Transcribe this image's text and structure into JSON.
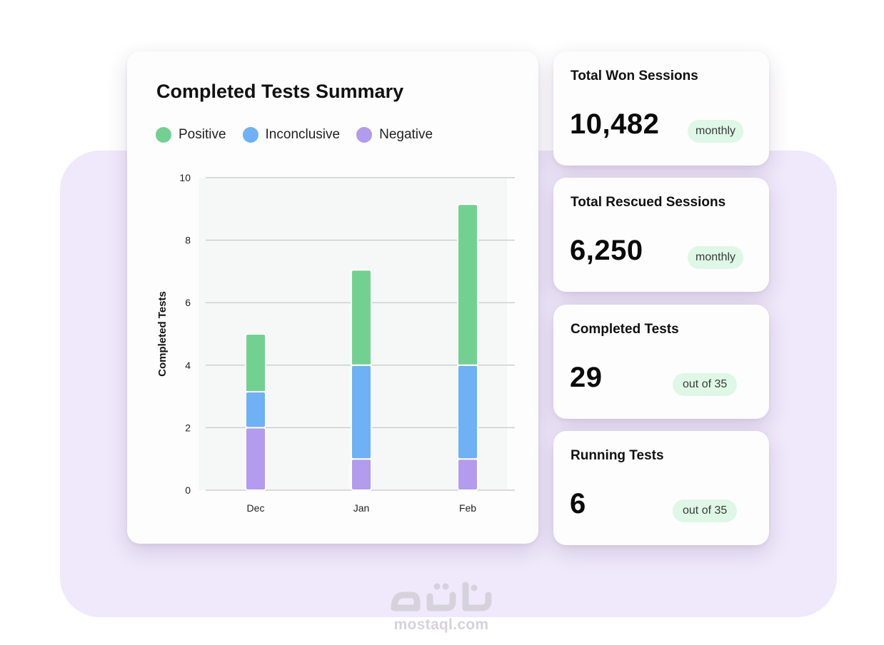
{
  "colors": {
    "positive": "#72d191",
    "inconclusive": "#6eb1f4",
    "negative": "#b39bed",
    "grid": "#cfcfcf",
    "plot_bg": "#f6f8f8"
  },
  "chart_data": {
    "type": "bar",
    "stacked": true,
    "title": "Completed Tests Summary",
    "xlabel": "",
    "ylabel": "Completed Tests",
    "ylim": [
      0,
      10
    ],
    "yticks": [
      0,
      2,
      4,
      6,
      8,
      10
    ],
    "categories": [
      "Dec",
      "Jan",
      "Feb"
    ],
    "series": [
      {
        "name": "Negative",
        "color": "#b39bed",
        "values": [
          2,
          1,
          1
        ]
      },
      {
        "name": "Inconclusive",
        "color": "#6eb1f4",
        "values": [
          1.15,
          3,
          3
        ]
      },
      {
        "name": "Positive",
        "color": "#72d191",
        "values": [
          1.85,
          3.05,
          5.15
        ]
      }
    ],
    "legend": {
      "position": "top-left",
      "order": [
        "Positive",
        "Inconclusive",
        "Negative"
      ]
    },
    "grid": true
  },
  "stats": [
    {
      "title": "Total Won Sessions",
      "value": "10,482",
      "badge": "monthly"
    },
    {
      "title": "Total Rescued Sessions",
      "value": "6,250",
      "badge": "monthly"
    },
    {
      "title": "Completed Tests",
      "value": "29",
      "badge": "out of 35"
    },
    {
      "title": "Running Tests",
      "value": "6",
      "badge": "out of 35"
    }
  ],
  "watermark": {
    "text": "mostaql.com",
    "logo": "مستقل"
  }
}
